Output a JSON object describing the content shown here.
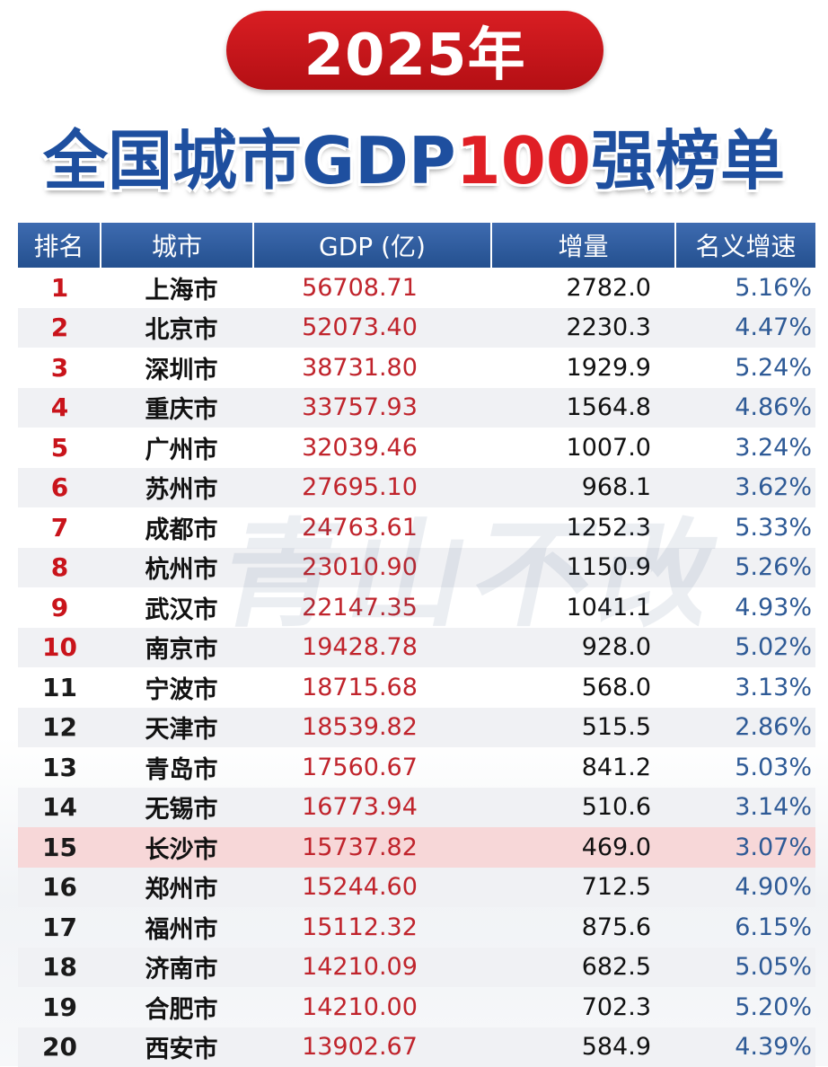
{
  "header": {
    "year": "2025年",
    "title_prefix": "全国城市GDP",
    "title_highlight": "100",
    "title_suffix": "强榜单"
  },
  "watermark": "青山不改",
  "table": {
    "columns": {
      "rank": "排名",
      "city": "城市",
      "gdp": "GDP (亿)",
      "increment": "增量",
      "growth": "名义增速"
    },
    "rows": [
      {
        "rank": "1",
        "city": "上海市",
        "gdp": "56708.71",
        "increment": "2782.0",
        "growth": "5.16%"
      },
      {
        "rank": "2",
        "city": "北京市",
        "gdp": "52073.40",
        "increment": "2230.3",
        "growth": "4.47%"
      },
      {
        "rank": "3",
        "city": "深圳市",
        "gdp": "38731.80",
        "increment": "1929.9",
        "growth": "5.24%"
      },
      {
        "rank": "4",
        "city": "重庆市",
        "gdp": "33757.93",
        "increment": "1564.8",
        "growth": "4.86%"
      },
      {
        "rank": "5",
        "city": "广州市",
        "gdp": "32039.46",
        "increment": "1007.0",
        "growth": "3.24%"
      },
      {
        "rank": "6",
        "city": "苏州市",
        "gdp": "27695.10",
        "increment": "968.1",
        "growth": "3.62%"
      },
      {
        "rank": "7",
        "city": "成都市",
        "gdp": "24763.61",
        "increment": "1252.3",
        "growth": "5.33%"
      },
      {
        "rank": "8",
        "city": "杭州市",
        "gdp": "23010.90",
        "increment": "1150.9",
        "growth": "5.26%"
      },
      {
        "rank": "9",
        "city": "武汉市",
        "gdp": "22147.35",
        "increment": "1041.1",
        "growth": "4.93%"
      },
      {
        "rank": "10",
        "city": "南京市",
        "gdp": "19428.78",
        "increment": "928.0",
        "growth": "5.02%"
      },
      {
        "rank": "11",
        "city": "宁波市",
        "gdp": "18715.68",
        "increment": "568.0",
        "growth": "3.13%"
      },
      {
        "rank": "12",
        "city": "天津市",
        "gdp": "18539.82",
        "increment": "515.5",
        "growth": "2.86%"
      },
      {
        "rank": "13",
        "city": "青岛市",
        "gdp": "17560.67",
        "increment": "841.2",
        "growth": "5.03%"
      },
      {
        "rank": "14",
        "city": "无锡市",
        "gdp": "16773.94",
        "increment": "510.6",
        "growth": "3.14%"
      },
      {
        "rank": "15",
        "city": "长沙市",
        "gdp": "15737.82",
        "increment": "469.0",
        "growth": "3.07%"
      },
      {
        "rank": "16",
        "city": "郑州市",
        "gdp": "15244.60",
        "increment": "712.5",
        "growth": "4.90%"
      },
      {
        "rank": "17",
        "city": "福州市",
        "gdp": "15112.32",
        "increment": "875.6",
        "growth": "6.15%"
      },
      {
        "rank": "18",
        "city": "济南市",
        "gdp": "14210.09",
        "increment": "682.5",
        "growth": "5.05%"
      },
      {
        "rank": "19",
        "city": "合肥市",
        "gdp": "14210.00",
        "increment": "702.3",
        "growth": "5.20%"
      },
      {
        "rank": "20",
        "city": "西安市",
        "gdp": "13902.67",
        "increment": "584.9",
        "growth": "4.39%"
      }
    ]
  },
  "colors": {
    "top10_rank": "#c9141b",
    "other_rank": "#1a1a1a",
    "gdp_text": "#c0242c",
    "growth_text": "#2e5a96",
    "header_bg": "#24508f",
    "highlight_row": "#f7d7d8"
  },
  "highlighted_rank": "15"
}
